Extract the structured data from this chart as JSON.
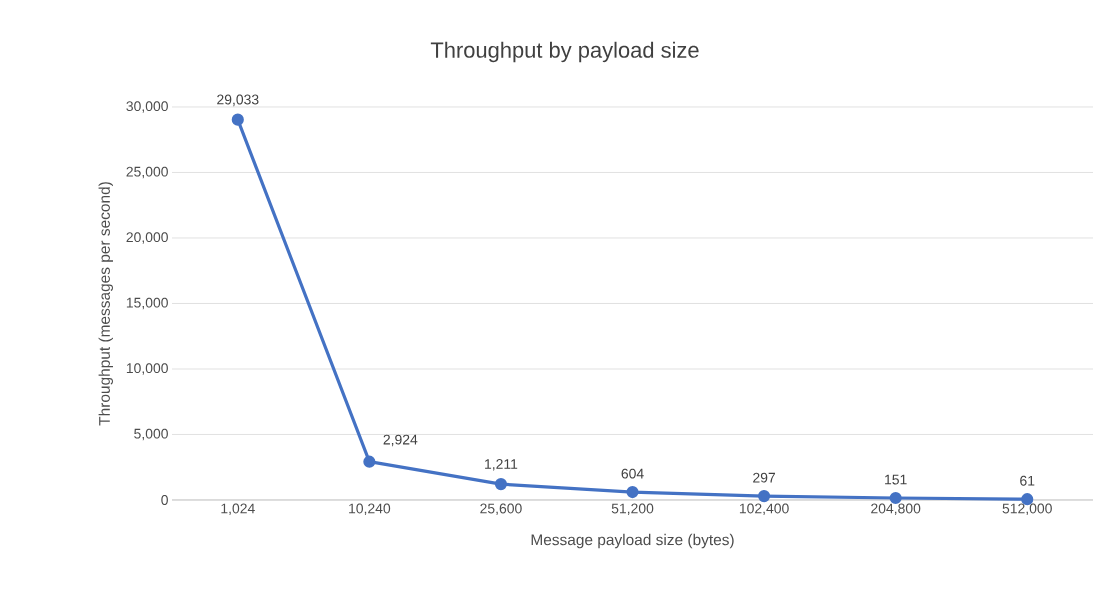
{
  "chart_data": {
    "type": "line",
    "title": "Throughput by payload size",
    "xlabel": "Message payload size (bytes)",
    "ylabel": "Throughput (messages per second)",
    "categories": [
      "1,024",
      "10,240",
      "25,600",
      "51,200",
      "102,400",
      "204,800",
      "512,000"
    ],
    "series": [
      {
        "color": "#4472c4",
        "values": [
          29033,
          2924,
          1211,
          604,
          297,
          151,
          61
        ],
        "value_labels": [
          "29,033",
          "2,924",
          "1,211",
          "604",
          "297",
          "151",
          "61"
        ]
      }
    ],
    "ylim": [
      0,
      30000
    ],
    "yticks": [
      0,
      {
        "value": 5000,
        "label": "5,000"
      },
      {
        "value": 10000,
        "label": "10,000"
      },
      {
        "value": 15000,
        "label": "15,000"
      },
      {
        "value": 20000,
        "label": "20,000"
      },
      {
        "value": 25000,
        "label": "25,000"
      },
      {
        "value": 30000,
        "label": "30,000"
      }
    ],
    "grid": "y",
    "marker": "circle",
    "line_style": "solid"
  }
}
